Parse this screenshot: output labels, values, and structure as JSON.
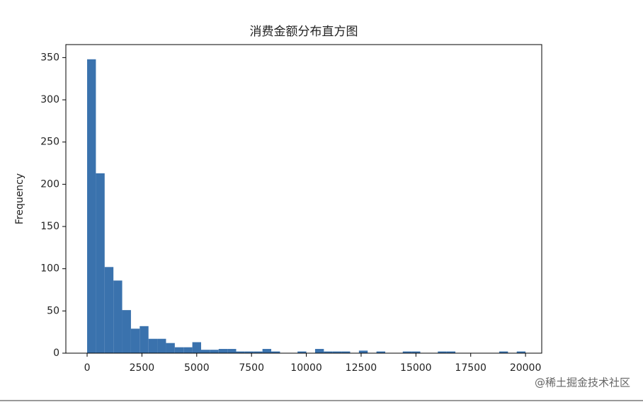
{
  "chart_data": {
    "type": "histogram",
    "title": "消费金额分布直方图",
    "y_label": "Frequency",
    "bins": [
      0,
      400,
      800,
      1200,
      1600,
      2000,
      2400,
      2800,
      3200,
      3600,
      4000,
      4400,
      4800,
      5200,
      5600,
      6000,
      6400,
      6800,
      7200,
      7600,
      8000,
      8400,
      8800,
      9200,
      9600,
      10000,
      10400,
      10800,
      11200,
      11600,
      12000,
      12400,
      12800,
      13200,
      13600,
      14000,
      14400,
      14800,
      15200,
      15600,
      16000,
      16400,
      16800,
      17200,
      17600,
      18000,
      18400,
      18800,
      19200,
      19600,
      20000
    ],
    "values": [
      348,
      213,
      102,
      86,
      51,
      29,
      32,
      17,
      17,
      12,
      7,
      7,
      13,
      4,
      4,
      5,
      5,
      2,
      2,
      2,
      5,
      2,
      0,
      0,
      2,
      0,
      5,
      2,
      2,
      2,
      0,
      3,
      0,
      2,
      0,
      0,
      2,
      2,
      0,
      0,
      2,
      2,
      0,
      0,
      0,
      0,
      0,
      2,
      0,
      2
    ],
    "color": "#3a72ad",
    "xlim": [
      -970,
      20740
    ],
    "ylim": [
      0,
      365.4
    ],
    "xticks": [
      0,
      2500,
      5000,
      7500,
      10000,
      12500,
      15000,
      17500,
      20000
    ],
    "yticks": [
      0,
      50,
      100,
      150,
      200,
      250,
      300,
      350
    ]
  },
  "watermark": "@稀土掘金技术社区"
}
